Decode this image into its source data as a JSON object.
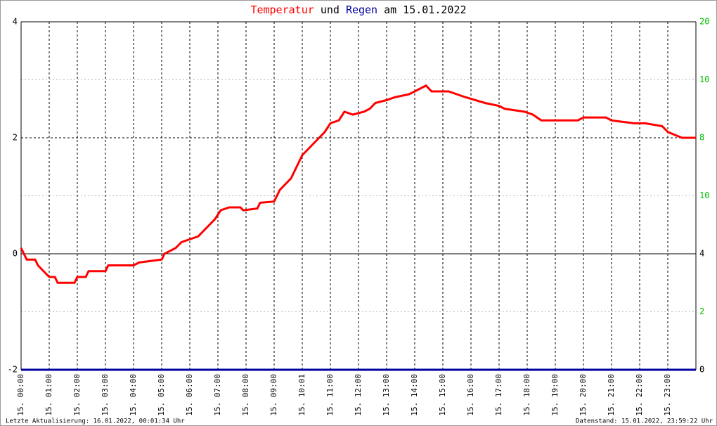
{
  "chart_data": {
    "type": "line",
    "title_connector": "und",
    "title_suffix": "am 15.01.2022",
    "categories": [
      "15. 00:00",
      "15. 01:00",
      "15. 02:00",
      "15. 03:00",
      "15. 04:00",
      "15. 05:00",
      "15. 06:00",
      "15. 07:00",
      "15. 08:00",
      "15. 09:00",
      "15. 10:01",
      "15. 11:00",
      "15. 12:00",
      "15. 13:00",
      "15. 14:00",
      "15. 15:00",
      "15. 16:00",
      "15. 17:00",
      "15. 18:00",
      "15. 19:00",
      "15. 20:00",
      "15. 21:00",
      "15. 22:00",
      "15. 23:00"
    ],
    "xlim": [
      0,
      24
    ],
    "ylim": [
      -2,
      4
    ],
    "yticks": [
      -2,
      0,
      2,
      4
    ],
    "y2lim": [
      0,
      20
    ],
    "y2_labels": [
      "20",
      "10",
      "8",
      "10",
      "4",
      "2",
      "0"
    ],
    "y2_label_colors": [
      "#00c000",
      "#00c000",
      "#00c000",
      "#00c000",
      "#000000",
      "#00c000",
      "#000000"
    ],
    "grid": true,
    "series": [
      {
        "name": "Temperatur",
        "color": "#ff0000",
        "x": [
          0,
          0.1,
          0.2,
          0.5,
          0.6,
          0.8,
          1.0,
          1.2,
          1.3,
          1.9,
          2.0,
          2.3,
          2.4,
          3.0,
          3.1,
          4.0,
          4.2,
          5.0,
          5.1,
          5.5,
          5.7,
          6.0,
          6.3,
          6.5,
          6.7,
          6.9,
          7.1,
          7.4,
          7.8,
          7.9,
          8.4,
          8.5,
          9.0,
          9.2,
          9.4,
          9.6,
          9.8,
          10.0,
          10.2,
          10.4,
          10.6,
          10.8,
          11.0,
          11.3,
          11.5,
          11.8,
          12.2,
          12.4,
          12.6,
          13.0,
          13.3,
          13.8,
          14.2,
          14.4,
          14.6,
          15.2,
          15.5,
          15.8,
          16.5,
          17.0,
          17.2,
          17.9,
          18.2,
          18.5,
          19.0,
          19.8,
          20.0,
          20.8,
          21.0,
          21.8,
          22.2,
          22.8,
          23.0,
          23.5,
          24.0
        ],
        "values": [
          0.1,
          0.0,
          -0.1,
          -0.1,
          -0.2,
          -0.3,
          -0.4,
          -0.4,
          -0.5,
          -0.5,
          -0.4,
          -0.4,
          -0.3,
          -0.3,
          -0.2,
          -0.2,
          -0.15,
          -0.1,
          0.0,
          0.1,
          0.2,
          0.25,
          0.3,
          0.4,
          0.5,
          0.6,
          0.75,
          0.8,
          0.8,
          0.75,
          0.78,
          0.88,
          0.9,
          1.1,
          1.2,
          1.3,
          1.5,
          1.7,
          1.8,
          1.9,
          2.0,
          2.1,
          2.25,
          2.3,
          2.45,
          2.4,
          2.45,
          2.5,
          2.6,
          2.65,
          2.7,
          2.75,
          2.85,
          2.9,
          2.8,
          2.8,
          2.75,
          2.7,
          2.6,
          2.55,
          2.5,
          2.45,
          2.4,
          2.3,
          2.3,
          2.3,
          2.35,
          2.35,
          2.3,
          2.25,
          2.25,
          2.2,
          2.1,
          2.0,
          2.0
        ]
      },
      {
        "name": "Regen",
        "color": "#0000a0",
        "axis": "y2",
        "x": [
          0,
          24
        ],
        "values": [
          0,
          0
        ]
      }
    ],
    "footer_left": "Letzte Aktualisierung: 16.01.2022, 00:01:34 Uhr",
    "footer_right": "Datenstand: 15.01.2022, 23:59:22 Uhr"
  }
}
